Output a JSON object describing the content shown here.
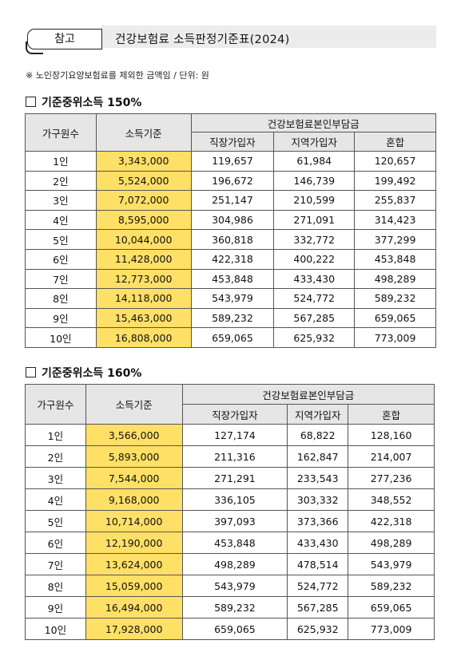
{
  "header": {
    "tag": "참고",
    "title": "건강보험료  소득판정기준표(2024)"
  },
  "note": "※ 노인장기요양보험료를 제외한 금액임 / 단위: 원",
  "columns": {
    "household": "가구원수",
    "income": "소득기준",
    "premium_group": "건강보험료본인부담금",
    "employee": "직장가입자",
    "regional": "지역가입자",
    "mixed": "혼합"
  },
  "tables": [
    {
      "title": "기준중위소득  150%",
      "rows": [
        [
          "1인",
          "3,343,000",
          "119,657",
          "61,984",
          "120,657"
        ],
        [
          "2인",
          "5,524,000",
          "196,672",
          "146,739",
          "199,492"
        ],
        [
          "3인",
          "7,072,000",
          "251,147",
          "210,599",
          "255,837"
        ],
        [
          "4인",
          "8,595,000",
          "304,986",
          "271,091",
          "314,423"
        ],
        [
          "5인",
          "10,044,000",
          "360,818",
          "332,772",
          "377,299"
        ],
        [
          "6인",
          "11,428,000",
          "422,318",
          "400,222",
          "453,848"
        ],
        [
          "7인",
          "12,773,000",
          "453,848",
          "433,430",
          "498,289"
        ],
        [
          "8인",
          "14,118,000",
          "543,979",
          "524,772",
          "589,232"
        ],
        [
          "9인",
          "15,463,000",
          "589,232",
          "567,285",
          "659,065"
        ],
        [
          "10인",
          "16,808,000",
          "659,065",
          "625,932",
          "773,009"
        ]
      ]
    },
    {
      "title": "기준중위소득  160%",
      "rows": [
        [
          "1인",
          "3,566,000",
          "127,174",
          "68,822",
          "128,160"
        ],
        [
          "2인",
          "5,893,000",
          "211,316",
          "162,847",
          "214,007"
        ],
        [
          "3인",
          "7,544,000",
          "271,291",
          "233,543",
          "277,236"
        ],
        [
          "4인",
          "9,168,000",
          "336,105",
          "303,332",
          "348,552"
        ],
        [
          "5인",
          "10,714,000",
          "397,093",
          "373,366",
          "422,318"
        ],
        [
          "6인",
          "12,190,000",
          "453,848",
          "433,430",
          "498,289"
        ],
        [
          "7인",
          "13,624,000",
          "498,289",
          "478,514",
          "543,979"
        ],
        [
          "8인",
          "15,059,000",
          "543,979",
          "524,772",
          "589,232"
        ],
        [
          "9인",
          "16,494,000",
          "589,232",
          "567,285",
          "659,065"
        ],
        [
          "10인",
          "17,928,000",
          "659,065",
          "625,932",
          "773,009"
        ]
      ]
    }
  ]
}
